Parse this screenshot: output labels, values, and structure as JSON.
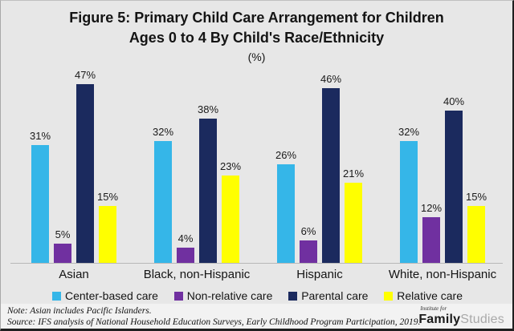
{
  "figure": {
    "title_line1": "Figure 5: Primary Child Care Arrangement for Children",
    "title_line2": "Ages 0 to 4 By Child's Race/Ethnicity",
    "subtitle": "(%)"
  },
  "chart_data": {
    "type": "bar",
    "title": "Figure 5: Primary Child Care Arrangement for Children Ages 0 to 4 By Child's Race/Ethnicity",
    "subtitle": "(%)",
    "categories": [
      "Asian",
      "Black, non-Hispanic",
      "Hispanic",
      "White, non-Hispanic"
    ],
    "series": [
      {
        "name": "Center-based care",
        "color": "#35b6e8",
        "values": [
          31,
          32,
          26,
          32
        ]
      },
      {
        "name": "Non-relative care",
        "color": "#7030a0",
        "values": [
          5,
          4,
          6,
          12
        ]
      },
      {
        "name": "Parental care",
        "color": "#1b2a5e",
        "values": [
          47,
          38,
          46,
          40
        ]
      },
      {
        "name": "Relative care",
        "color": "#ffff00",
        "values": [
          15,
          23,
          21,
          15
        ]
      }
    ],
    "value_suffix": "%",
    "xlabel": "",
    "ylabel": "(%)",
    "ylim": [
      0,
      50
    ],
    "grid": false,
    "legend_position": "bottom",
    "data_labels": true
  },
  "footer": {
    "note": "Note: Asian includes Pacific Islanders.",
    "source": "Source: IFS analysis of National Household Education Surveys, Early Childhood Program Participation, 2019.",
    "logo": {
      "top": "Institute for",
      "bold": "Family",
      "light": "Studies"
    }
  },
  "colors": {
    "background": "#e7e7e7",
    "footer_background": "#f2f2f2",
    "axis_line": "#b8b8b8",
    "text": "#141414"
  }
}
